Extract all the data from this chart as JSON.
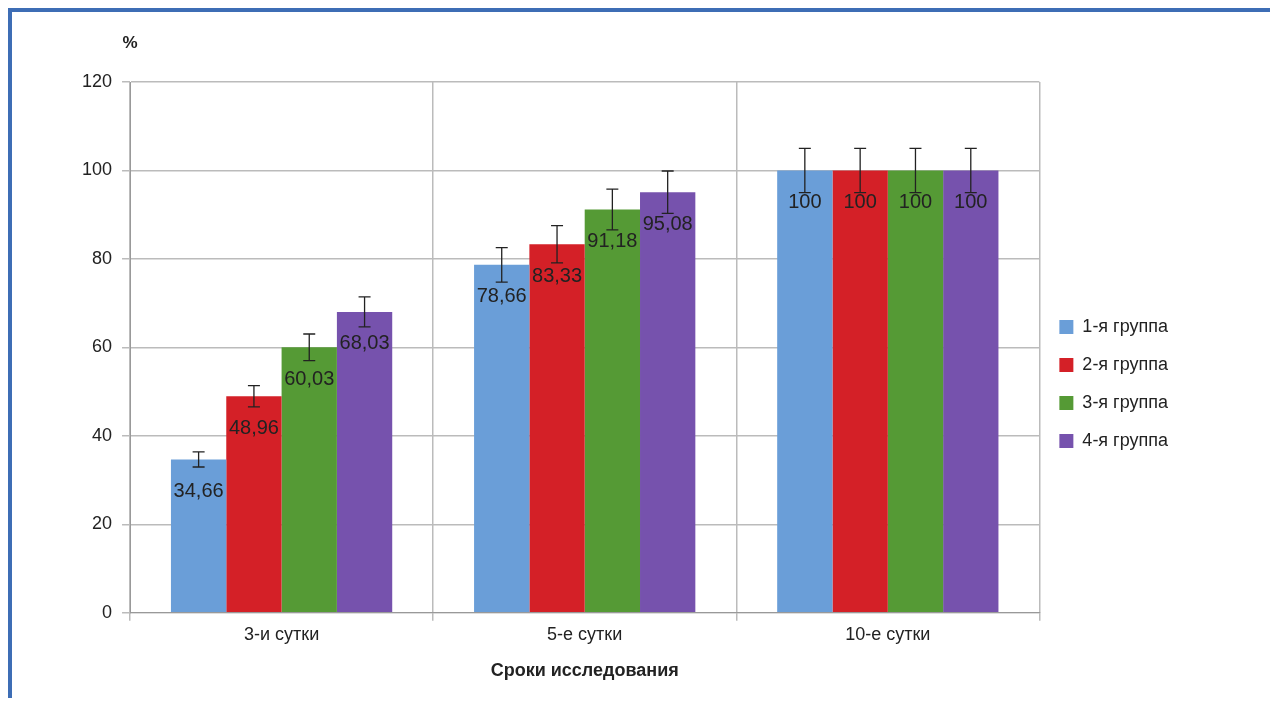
{
  "chart_data": {
    "type": "bar",
    "ylabel": "%",
    "xlabel": "Сроки исследования",
    "categories": [
      "3-и сутки",
      "5-е сутки",
      "10-е сутки"
    ],
    "series": [
      {
        "name": "1-я группа",
        "color": "#6a9ed8",
        "values": [
          34.66,
          78.66,
          100
        ],
        "value_labels": [
          "34,66",
          "78,66",
          "100"
        ],
        "errors": [
          1.7,
          3.9,
          5
        ]
      },
      {
        "name": "2-я группа",
        "color": "#d42027",
        "values": [
          48.96,
          83.33,
          100
        ],
        "value_labels": [
          "48,96",
          "83,33",
          "100"
        ],
        "errors": [
          2.4,
          4.2,
          5
        ]
      },
      {
        "name": "3-я группа",
        "color": "#559a35",
        "values": [
          60.03,
          91.18,
          100
        ],
        "value_labels": [
          "60,03",
          "91,18",
          "100"
        ],
        "errors": [
          3,
          4.6,
          5
        ]
      },
      {
        "name": "4-я группа",
        "color": "#7652ad",
        "values": [
          68.03,
          95.08,
          100
        ],
        "value_labels": [
          "68,03",
          "95,08",
          "100"
        ],
        "errors": [
          3.4,
          4.8,
          5
        ]
      }
    ],
    "ylim": [
      0,
      120
    ],
    "yticks": [
      0,
      20,
      40,
      60,
      80,
      100,
      120
    ],
    "grid": true,
    "legend": "right"
  }
}
